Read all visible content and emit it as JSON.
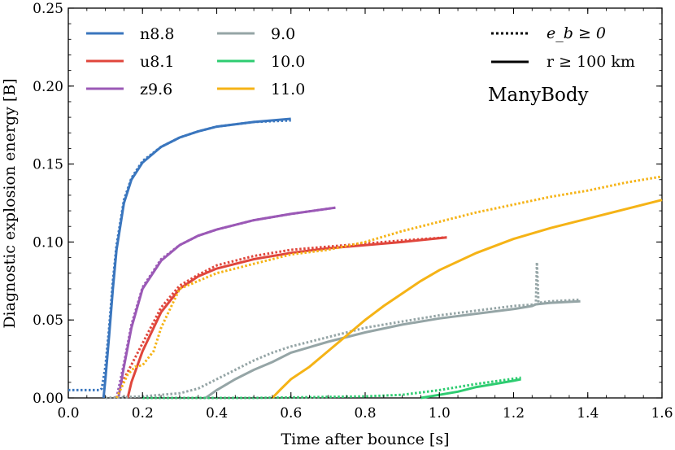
{
  "chart_data": {
    "type": "line",
    "title": "",
    "xlabel": "Time after bounce [s]",
    "ylabel": "Diagnostic explosion energy [B]",
    "xlim": [
      0.0,
      1.6
    ],
    "ylim": [
      0.0,
      0.25
    ],
    "xticks": [
      "0.0",
      "0.2",
      "0.4",
      "0.6",
      "0.8",
      "1.0",
      "1.2",
      "1.4",
      "1.6"
    ],
    "yticks": [
      "0.00",
      "0.05",
      "0.10",
      "0.15",
      "0.20",
      "0.25"
    ],
    "annotation": "ManyBody",
    "style_legend": [
      {
        "key": "dotted",
        "label": "e_b ≥ 0"
      },
      {
        "key": "solid",
        "label": "r ≥ 100 km"
      }
    ],
    "series": [
      {
        "name": "n8.8",
        "color": "#3a76be",
        "solid": [
          [
            0.095,
            0.0
          ],
          [
            0.1,
            0.012
          ],
          [
            0.11,
            0.04
          ],
          [
            0.12,
            0.07
          ],
          [
            0.13,
            0.095
          ],
          [
            0.15,
            0.125
          ],
          [
            0.17,
            0.14
          ],
          [
            0.2,
            0.151
          ],
          [
            0.25,
            0.161
          ],
          [
            0.3,
            0.167
          ],
          [
            0.35,
            0.171
          ],
          [
            0.4,
            0.174
          ],
          [
            0.5,
            0.177
          ],
          [
            0.6,
            0.179
          ]
        ],
        "dotted": [
          [
            0.0,
            0.005
          ],
          [
            0.085,
            0.005
          ],
          [
            0.09,
            0.006
          ],
          [
            0.1,
            0.02
          ],
          [
            0.11,
            0.045
          ],
          [
            0.12,
            0.075
          ],
          [
            0.13,
            0.098
          ],
          [
            0.15,
            0.127
          ],
          [
            0.17,
            0.141
          ],
          [
            0.2,
            0.152
          ],
          [
            0.25,
            0.161
          ],
          [
            0.3,
            0.167
          ],
          [
            0.35,
            0.171
          ],
          [
            0.4,
            0.174
          ],
          [
            0.5,
            0.177
          ],
          [
            0.6,
            0.178
          ]
        ]
      },
      {
        "name": "u8.1",
        "color": "#e0463c",
        "solid": [
          [
            0.16,
            0.0
          ],
          [
            0.17,
            0.01
          ],
          [
            0.2,
            0.03
          ],
          [
            0.25,
            0.055
          ],
          [
            0.3,
            0.07
          ],
          [
            0.35,
            0.078
          ],
          [
            0.4,
            0.083
          ],
          [
            0.5,
            0.089
          ],
          [
            0.6,
            0.093
          ],
          [
            0.7,
            0.096
          ],
          [
            0.8,
            0.098
          ],
          [
            0.9,
            0.1
          ],
          [
            1.02,
            0.103
          ]
        ],
        "dotted": [
          [
            0.13,
            0.0
          ],
          [
            0.15,
            0.012
          ],
          [
            0.2,
            0.035
          ],
          [
            0.25,
            0.058
          ],
          [
            0.3,
            0.072
          ],
          [
            0.35,
            0.079
          ],
          [
            0.4,
            0.085
          ],
          [
            0.5,
            0.091
          ],
          [
            0.6,
            0.095
          ],
          [
            0.7,
            0.097
          ],
          [
            0.8,
            0.099
          ],
          [
            0.9,
            0.101
          ],
          [
            1.02,
            0.103
          ]
        ]
      },
      {
        "name": "z9.6",
        "color": "#9b59b6",
        "solid": [
          [
            0.135,
            0.0
          ],
          [
            0.15,
            0.02
          ],
          [
            0.17,
            0.045
          ],
          [
            0.2,
            0.07
          ],
          [
            0.25,
            0.088
          ],
          [
            0.3,
            0.098
          ],
          [
            0.35,
            0.104
          ],
          [
            0.4,
            0.108
          ],
          [
            0.5,
            0.114
          ],
          [
            0.6,
            0.118
          ],
          [
            0.72,
            0.122
          ]
        ],
        "dotted": [
          [
            0.13,
            0.0
          ],
          [
            0.15,
            0.022
          ],
          [
            0.17,
            0.047
          ],
          [
            0.2,
            0.071
          ],
          [
            0.25,
            0.089
          ],
          [
            0.3,
            0.098
          ],
          [
            0.35,
            0.104
          ],
          [
            0.4,
            0.108
          ],
          [
            0.5,
            0.114
          ],
          [
            0.6,
            0.118
          ],
          [
            0.72,
            0.122
          ]
        ]
      },
      {
        "name": "9.0",
        "color": "#95a5a6",
        "solid": [
          [
            0.37,
            0.0
          ],
          [
            0.4,
            0.005
          ],
          [
            0.45,
            0.012
          ],
          [
            0.5,
            0.018
          ],
          [
            0.55,
            0.023
          ],
          [
            0.6,
            0.029
          ],
          [
            0.7,
            0.036
          ],
          [
            0.8,
            0.042
          ],
          [
            0.9,
            0.047
          ],
          [
            1.0,
            0.051
          ],
          [
            1.1,
            0.054
          ],
          [
            1.2,
            0.057
          ],
          [
            1.25,
            0.059
          ],
          [
            1.26,
            0.06
          ],
          [
            1.3,
            0.061
          ],
          [
            1.38,
            0.062
          ]
        ],
        "dotted": [
          [
            0.1,
            0.0
          ],
          [
            0.2,
            0.001
          ],
          [
            0.3,
            0.003
          ],
          [
            0.35,
            0.006
          ],
          [
            0.4,
            0.012
          ],
          [
            0.45,
            0.018
          ],
          [
            0.5,
            0.024
          ],
          [
            0.55,
            0.029
          ],
          [
            0.6,
            0.033
          ],
          [
            0.7,
            0.039
          ],
          [
            0.8,
            0.045
          ],
          [
            0.9,
            0.049
          ],
          [
            1.0,
            0.053
          ],
          [
            1.1,
            0.056
          ],
          [
            1.2,
            0.059
          ],
          [
            1.26,
            0.06
          ],
          [
            1.263,
            0.087
          ],
          [
            1.267,
            0.061
          ],
          [
            1.3,
            0.062
          ],
          [
            1.38,
            0.063
          ]
        ]
      },
      {
        "name": "10.0",
        "color": "#2ecc71",
        "solid": [
          [
            0.95,
            0.0
          ],
          [
            1.0,
            0.002
          ],
          [
            1.05,
            0.004
          ],
          [
            1.1,
            0.007
          ],
          [
            1.15,
            0.009
          ],
          [
            1.2,
            0.011
          ],
          [
            1.22,
            0.012
          ]
        ],
        "dotted": [
          [
            0.2,
            0.0
          ],
          [
            0.5,
            0.0
          ],
          [
            0.8,
            0.001
          ],
          [
            0.9,
            0.002
          ],
          [
            1.0,
            0.005
          ],
          [
            1.1,
            0.009
          ],
          [
            1.22,
            0.013
          ]
        ]
      },
      {
        "name": "11.0",
        "color": "#f5b316",
        "solid": [
          [
            0.55,
            0.0
          ],
          [
            0.57,
            0.005
          ],
          [
            0.6,
            0.012
          ],
          [
            0.65,
            0.02
          ],
          [
            0.7,
            0.03
          ],
          [
            0.75,
            0.04
          ],
          [
            0.8,
            0.05
          ],
          [
            0.85,
            0.059
          ],
          [
            0.9,
            0.067
          ],
          [
            0.95,
            0.075
          ],
          [
            1.0,
            0.082
          ],
          [
            1.1,
            0.093
          ],
          [
            1.2,
            0.102
          ],
          [
            1.3,
            0.109
          ],
          [
            1.4,
            0.115
          ],
          [
            1.5,
            0.121
          ],
          [
            1.6,
            0.127
          ]
        ],
        "dotted": [
          [
            0.13,
            0.0
          ],
          [
            0.16,
            0.015
          ],
          [
            0.18,
            0.02
          ],
          [
            0.2,
            0.021
          ],
          [
            0.23,
            0.03
          ],
          [
            0.25,
            0.045
          ],
          [
            0.28,
            0.06
          ],
          [
            0.3,
            0.07
          ],
          [
            0.35,
            0.075
          ],
          [
            0.4,
            0.08
          ],
          [
            0.45,
            0.083
          ],
          [
            0.5,
            0.086
          ],
          [
            0.55,
            0.089
          ],
          [
            0.6,
            0.092
          ],
          [
            0.7,
            0.095
          ],
          [
            0.8,
            0.1
          ],
          [
            0.9,
            0.107
          ],
          [
            1.0,
            0.113
          ],
          [
            1.1,
            0.119
          ],
          [
            1.2,
            0.124
          ],
          [
            1.3,
            0.129
          ],
          [
            1.4,
            0.133
          ],
          [
            1.5,
            0.138
          ],
          [
            1.6,
            0.142
          ]
        ]
      }
    ]
  }
}
